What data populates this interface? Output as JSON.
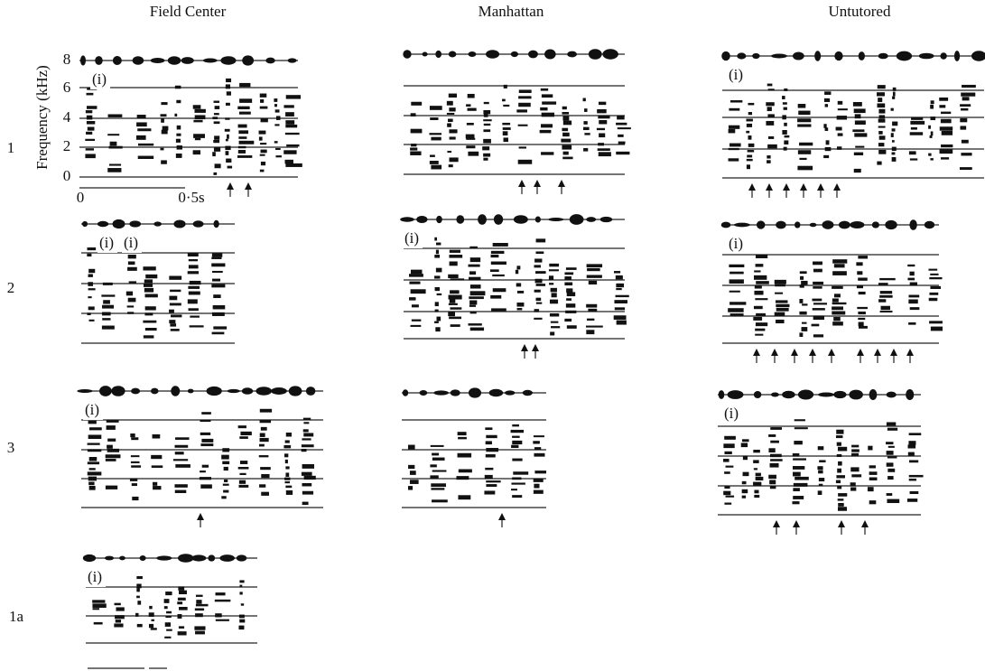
{
  "columns": [
    "Field Center",
    "Manhattan",
    "Untutored"
  ],
  "rows": [
    "1",
    "2",
    "3",
    "1a"
  ],
  "axis": {
    "label": "Frequency (kHz)",
    "ticks": [
      "8",
      "6",
      "4",
      "2",
      "0"
    ],
    "time_ticks": [
      "0",
      "0·5s"
    ]
  },
  "panels": [
    {
      "notes": [
        "(i)"
      ]
    },
    {
      "notes": []
    },
    {
      "notes": [
        "(i)"
      ]
    },
    {
      "notes": [
        "(i)",
        "(i)"
      ]
    },
    {
      "notes": [
        "(i)"
      ]
    },
    {
      "notes": [
        "(i)"
      ]
    },
    {
      "notes": [
        "(i)"
      ]
    },
    {
      "notes": []
    },
    {
      "notes": [
        "(i)"
      ]
    },
    {
      "notes": [
        "(i)"
      ]
    }
  ]
}
